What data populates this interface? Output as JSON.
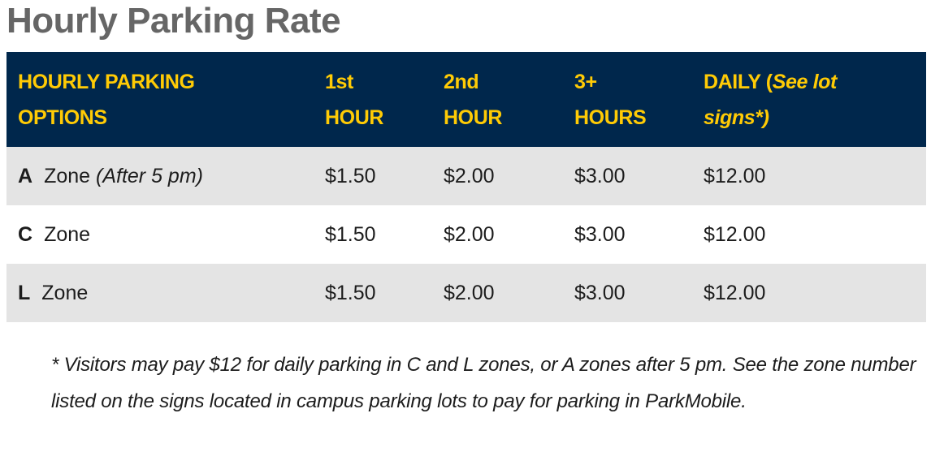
{
  "title": "Hourly Parking Rate",
  "table": {
    "header": {
      "col1_line1": "HOURLY PARKING",
      "col1_line2": "OPTIONS",
      "col2_line1": "1st",
      "col2_line2": "HOUR",
      "col3_line1": "2nd",
      "col3_line2": "HOUR",
      "col4_line1": "3+",
      "col4_line2": "HOURS",
      "col5_line1_plain": "DAILY (",
      "col5_line1_italic": "See lot",
      "col5_line2_italic": "signs*)"
    },
    "rows": [
      {
        "letter": "A",
        "zone": "Zone",
        "note": "(After 5 pm)",
        "first_hour": "$1.50",
        "second_hour": "$2.00",
        "three_plus": "$3.00",
        "daily": "$12.00"
      },
      {
        "letter": "C",
        "zone": "Zone",
        "note": "",
        "first_hour": "$1.50",
        "second_hour": "$2.00",
        "three_plus": "$3.00",
        "daily": "$12.00"
      },
      {
        "letter": "L",
        "zone": "Zone",
        "note": "",
        "first_hour": "$1.50",
        "second_hour": "$2.00",
        "three_plus": "$3.00",
        "daily": "$12.00"
      }
    ]
  },
  "footnote": "* Visitors may pay $12 for daily parking in C and L zones, or A zones after 5 pm. See the zone number listed on the signs located in campus parking lots to pay for parking in ParkMobile.",
  "colors": {
    "header_background": "#00274c",
    "header_text": "#ffcb05",
    "title_text": "#666666",
    "row_shade": "#e4e4e4"
  }
}
